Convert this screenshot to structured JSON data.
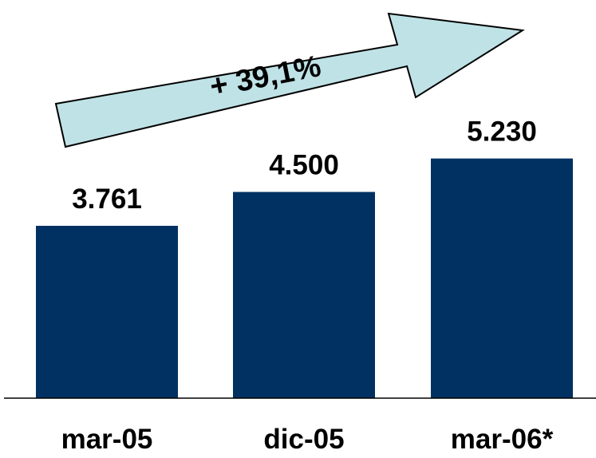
{
  "chart_data": {
    "type": "bar",
    "categories": [
      "mar-05",
      "dic-05",
      "mar-06*"
    ],
    "values": [
      3761,
      4500,
      5230
    ],
    "value_labels": [
      "3.761",
      "4.500",
      "5.230"
    ],
    "title": "",
    "xlabel": "",
    "ylabel": "",
    "ylim": [
      0,
      6000
    ],
    "grid": false,
    "legend": "none",
    "annotation": {
      "text": "+ 39,1%",
      "shape": "arrow-up-right"
    }
  },
  "colors": {
    "bar": "#003162",
    "arrow_fill": "#bfe2e6",
    "arrow_stroke": "#000000",
    "axis": "#000000"
  }
}
